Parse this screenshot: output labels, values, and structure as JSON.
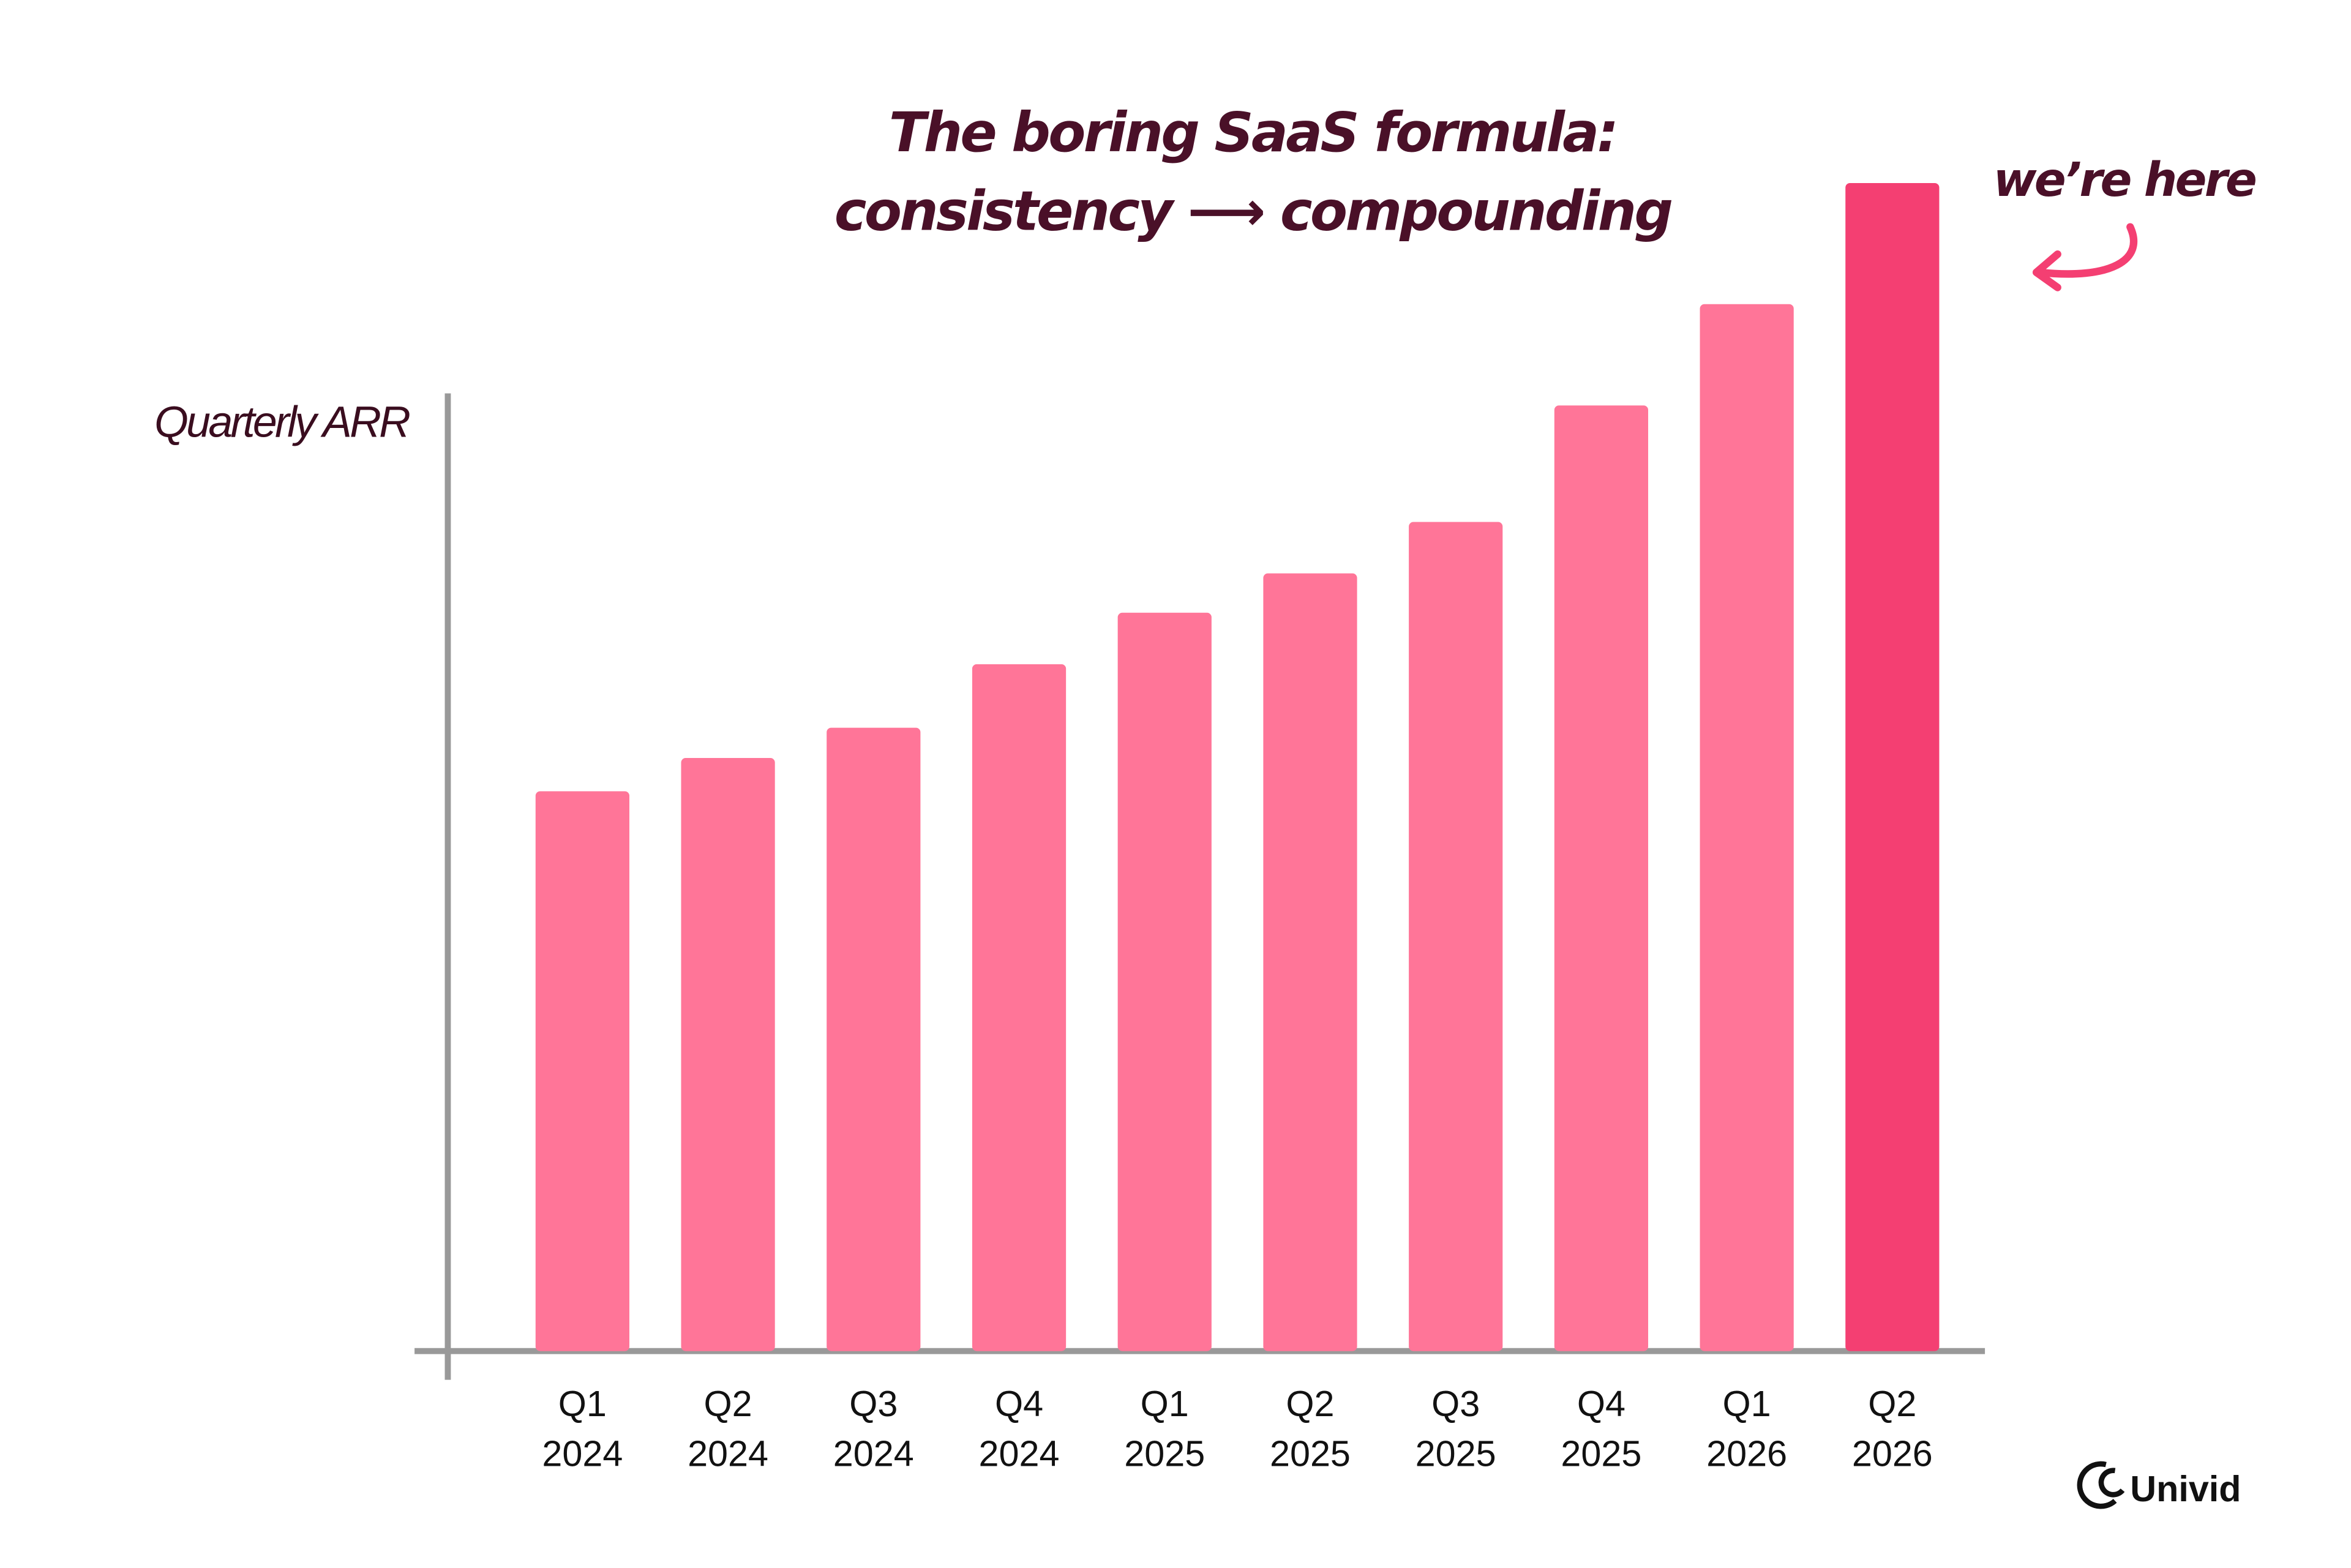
{
  "chart_data": {
    "type": "bar",
    "title": [
      "The boring SaaS formula:",
      "consistency ⟶ compounding"
    ],
    "annotation": "we’re here",
    "y_label": "Quarterly ARR",
    "brand": "Univid",
    "categories": [
      "Q1\n2024",
      "Q2\n2024",
      "Q3\n2024",
      "Q4\n2024",
      "Q1\n2025",
      "Q2\n2025",
      "Q3\n2025",
      "Q4\n2025",
      "Q1\n2026",
      "Q2\n2026"
    ],
    "values": [
      370,
      392,
      412,
      454,
      488,
      514,
      548,
      625,
      692,
      772
    ],
    "colors": [
      "#ff7598",
      "#ff7598",
      "#ff7598",
      "#ff7598",
      "#ff7598",
      "#ff7598",
      "#ff7598",
      "#ff7598",
      "#ff7598",
      "#f43f72"
    ],
    "ylim": [
      0,
      800
    ]
  }
}
